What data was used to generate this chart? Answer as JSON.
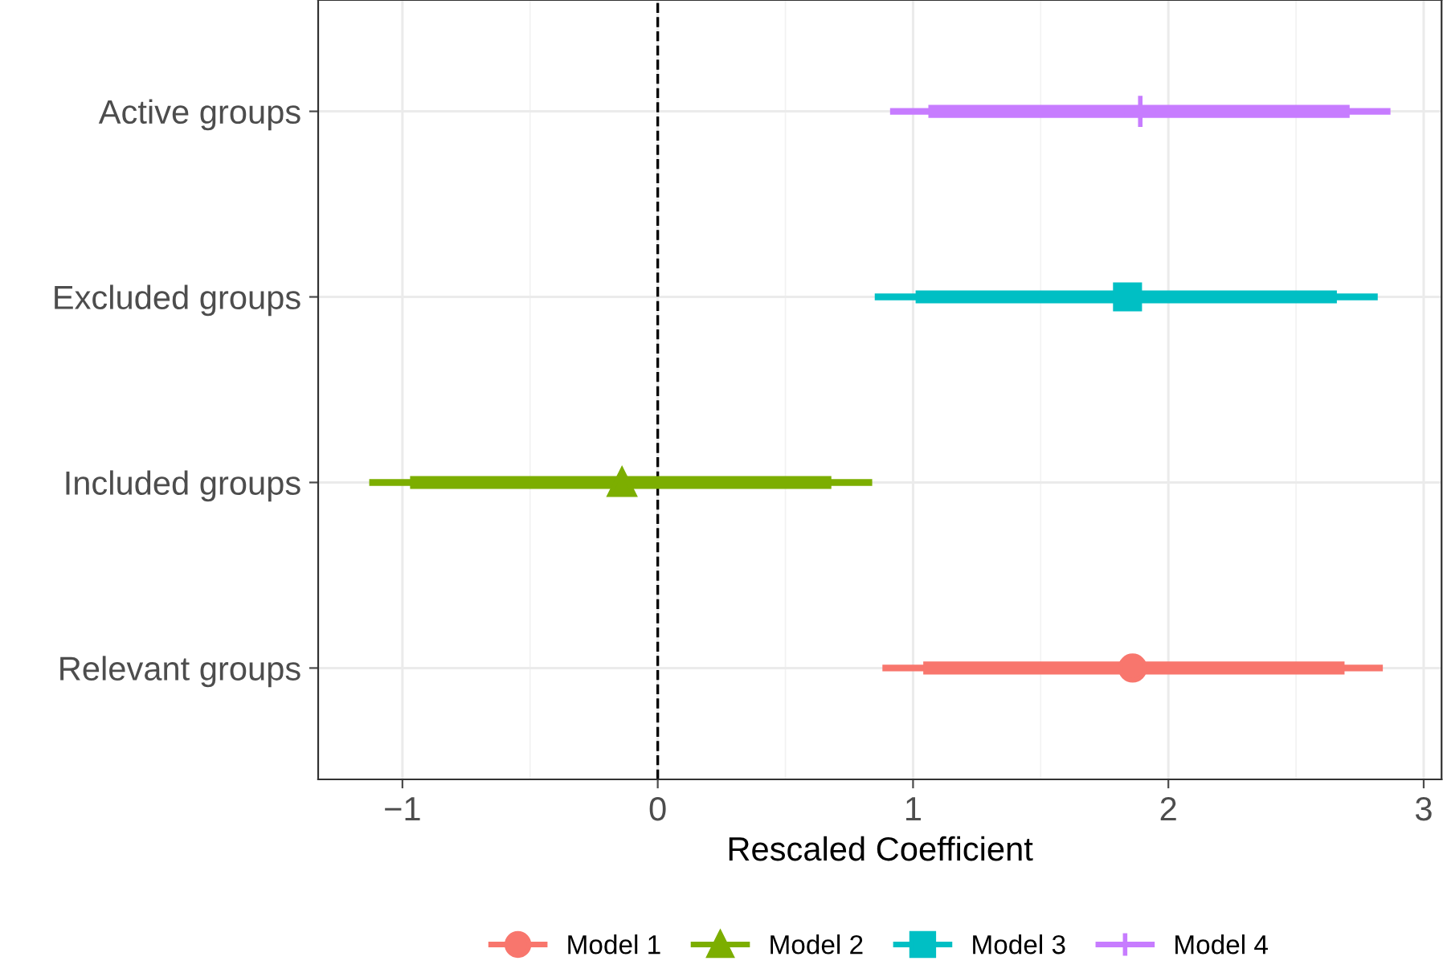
{
  "chart_data": {
    "type": "scatter",
    "orientation": "horizontal",
    "xlabel": "Rescaled Coefficient",
    "categories": [
      "Active groups",
      "Excluded groups",
      "Included groups",
      "Relevant groups"
    ],
    "xlim": [
      -1.33,
      3.07
    ],
    "xticks": [
      {
        "value": -1,
        "label": "−1"
      },
      0,
      1,
      2,
      3
    ],
    "grid": true,
    "legend": "bottom",
    "ref_lines": [
      {
        "axis": "x",
        "value": 0,
        "color": "#000000",
        "line_style": "dashed"
      }
    ],
    "series": [
      {
        "name": "Model 1",
        "marker": "circle",
        "color": "#f8766d",
        "values": [
          null,
          null,
          null,
          1.86
        ],
        "errors": [
          null,
          null,
          null,
          [
            0.88,
            2.84
          ]
        ]
      },
      {
        "type": "bar",
        "color": "#f8766d",
        "base": [
          null,
          null,
          null,
          1.04
        ],
        "values": [
          null,
          null,
          null,
          1.65
        ]
      },
      {
        "name": "Model 2",
        "marker": "triangle",
        "color": "#7cae00",
        "values": [
          null,
          null,
          -0.14,
          null
        ],
        "errors": [
          null,
          null,
          [
            -1.13,
            0.84
          ],
          null
        ]
      },
      {
        "type": "bar",
        "color": "#7cae00",
        "base": [
          null,
          null,
          -0.97,
          null
        ],
        "values": [
          null,
          null,
          1.65,
          null
        ]
      },
      {
        "name": "Model 3",
        "marker": "square",
        "color": "#00bfc4",
        "values": [
          null,
          1.84,
          null,
          null
        ],
        "errors": [
          null,
          [
            0.85,
            2.82
          ],
          null,
          null
        ]
      },
      {
        "type": "bar",
        "color": "#00bfc4",
        "base": [
          null,
          1.01,
          null,
          null
        ],
        "values": [
          null,
          1.65,
          null,
          null
        ]
      },
      {
        "name": "Model 4",
        "marker": "cross",
        "color": "#c77cff",
        "values": [
          1.89,
          null,
          null,
          null
        ],
        "errors": [
          [
            0.91,
            2.87
          ],
          null,
          null,
          null
        ]
      },
      {
        "type": "bar",
        "color": "#c77cff",
        "base": [
          1.06,
          null,
          null,
          null
        ],
        "values": [
          1.65,
          null,
          null,
          null
        ]
      }
    ]
  }
}
